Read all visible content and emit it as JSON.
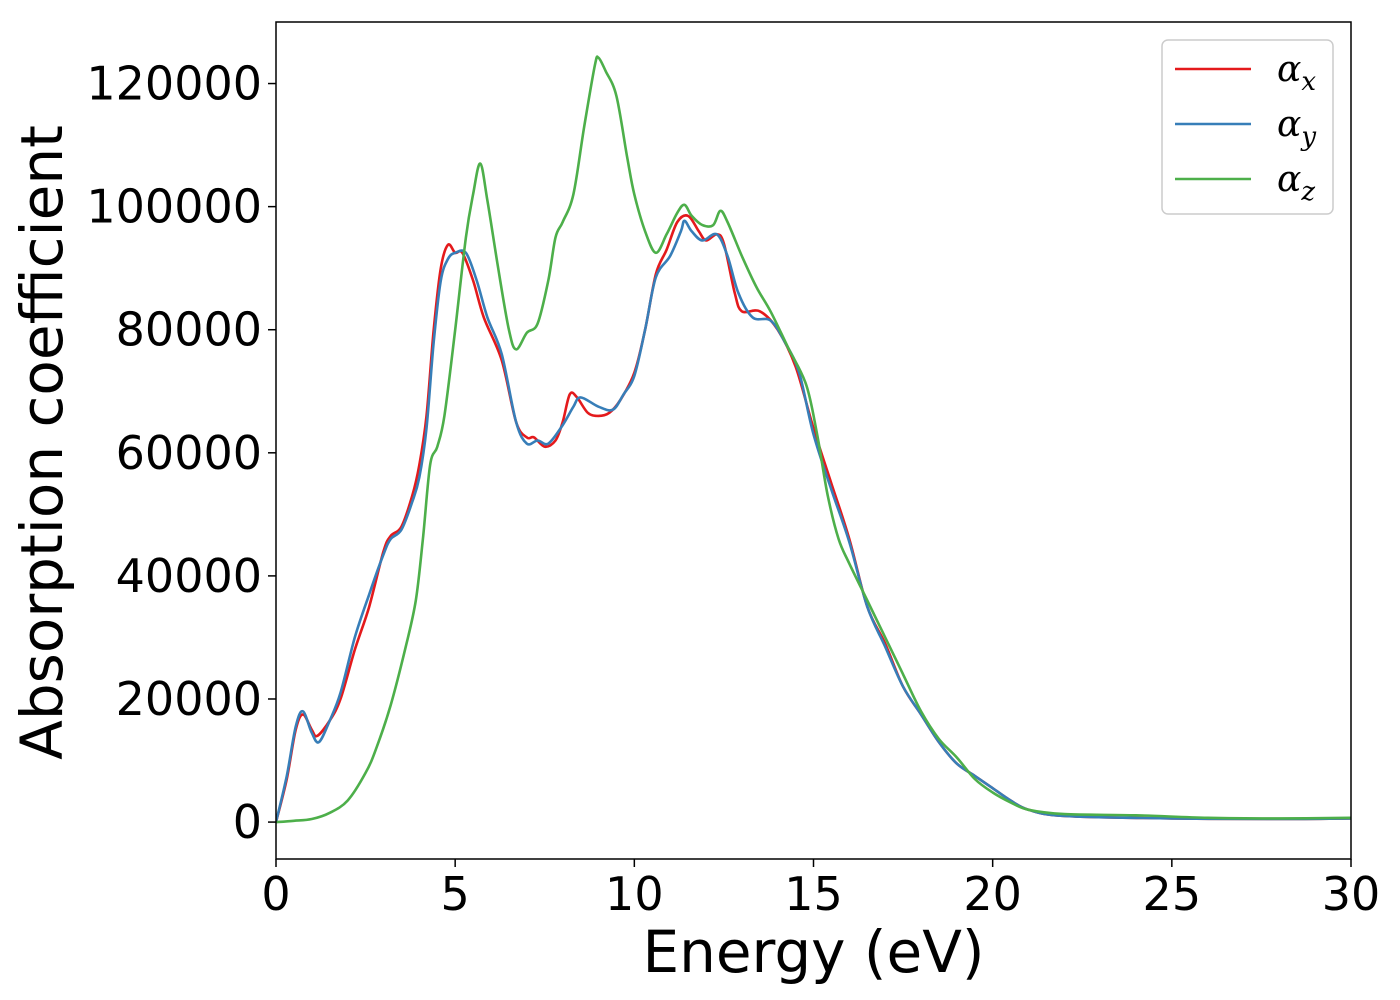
{
  "chart_data": {
    "type": "line",
    "title": "",
    "xlabel": "Energy (eV)",
    "ylabel": "Absorption coefficient",
    "xlim": [
      0,
      30
    ],
    "ylim": [
      -6000,
      130000
    ],
    "x_ticks": [
      "0",
      "5",
      "10",
      "15",
      "20",
      "25",
      "30"
    ],
    "y_ticks": [
      "0",
      "20000",
      "40000",
      "60000",
      "80000",
      "100000",
      "120000"
    ],
    "grid": false,
    "legend_position": "top-right",
    "series": [
      {
        "name": "αx",
        "legend_base": "α",
        "legend_sub": "x",
        "color": "#e41a1c",
        "points": [
          [
            0,
            0
          ],
          [
            0.3,
            7000
          ],
          [
            0.55,
            15000
          ],
          [
            0.75,
            17500
          ],
          [
            1.0,
            15000
          ],
          [
            1.15,
            14000
          ],
          [
            1.5,
            16500
          ],
          [
            1.8,
            20000
          ],
          [
            2.2,
            28000
          ],
          [
            2.6,
            35000
          ],
          [
            3.0,
            44000
          ],
          [
            3.2,
            46500
          ],
          [
            3.5,
            48000
          ],
          [
            3.8,
            53000
          ],
          [
            4.0,
            58000
          ],
          [
            4.2,
            66000
          ],
          [
            4.4,
            80000
          ],
          [
            4.6,
            90000
          ],
          [
            4.8,
            93800
          ],
          [
            5.0,
            92500
          ],
          [
            5.2,
            92500
          ],
          [
            5.5,
            88000
          ],
          [
            5.8,
            82000
          ],
          [
            6.3,
            75000
          ],
          [
            6.7,
            65000
          ],
          [
            7.0,
            62500
          ],
          [
            7.2,
            62500
          ],
          [
            7.5,
            61000
          ],
          [
            7.8,
            62000
          ],
          [
            8.0,
            65000
          ],
          [
            8.2,
            69500
          ],
          [
            8.4,
            69000
          ],
          [
            8.7,
            66500
          ],
          [
            9.0,
            66000
          ],
          [
            9.3,
            66500
          ],
          [
            9.6,
            68500
          ],
          [
            10.0,
            73000
          ],
          [
            10.3,
            80000
          ],
          [
            10.6,
            89000
          ],
          [
            10.9,
            93000
          ],
          [
            11.2,
            97500
          ],
          [
            11.5,
            98500
          ],
          [
            11.8,
            96000
          ],
          [
            12.0,
            94500
          ],
          [
            12.3,
            95500
          ],
          [
            12.5,
            94000
          ],
          [
            12.8,
            86000
          ],
          [
            13.0,
            83000
          ],
          [
            13.5,
            83000
          ],
          [
            14.0,
            80000
          ],
          [
            14.5,
            74000
          ],
          [
            15.0,
            64000
          ],
          [
            15.5,
            55000
          ],
          [
            16.0,
            46000
          ],
          [
            16.5,
            35000
          ],
          [
            17.0,
            29000
          ],
          [
            17.5,
            22000
          ],
          [
            18.0,
            17500
          ],
          [
            18.5,
            13000
          ],
          [
            19.0,
            9500
          ],
          [
            19.5,
            7500
          ],
          [
            20.0,
            5500
          ],
          [
            20.5,
            3500
          ],
          [
            21.0,
            2000
          ],
          [
            22.0,
            1000
          ],
          [
            25.0,
            600
          ],
          [
            28.0,
            500
          ],
          [
            30.0,
            600
          ]
        ]
      },
      {
        "name": "αy",
        "legend_base": "α",
        "legend_sub": "y",
        "color": "#377eb8",
        "points": [
          [
            0,
            0
          ],
          [
            0.3,
            7500
          ],
          [
            0.55,
            15500
          ],
          [
            0.75,
            18000
          ],
          [
            1.0,
            14500
          ],
          [
            1.2,
            13000
          ],
          [
            1.5,
            16500
          ],
          [
            1.8,
            21000
          ],
          [
            2.2,
            30000
          ],
          [
            2.6,
            37000
          ],
          [
            3.0,
            43500
          ],
          [
            3.2,
            46000
          ],
          [
            3.5,
            47500
          ],
          [
            3.8,
            52000
          ],
          [
            4.0,
            56000
          ],
          [
            4.2,
            64000
          ],
          [
            4.4,
            78000
          ],
          [
            4.6,
            88000
          ],
          [
            4.8,
            91500
          ],
          [
            5.0,
            92500
          ],
          [
            5.3,
            92500
          ],
          [
            5.6,
            88000
          ],
          [
            5.9,
            82000
          ],
          [
            6.3,
            76000
          ],
          [
            6.7,
            65000
          ],
          [
            7.0,
            61500
          ],
          [
            7.3,
            62000
          ],
          [
            7.6,
            61500
          ],
          [
            8.0,
            64500
          ],
          [
            8.3,
            67500
          ],
          [
            8.5,
            69000
          ],
          [
            9.0,
            67500
          ],
          [
            9.4,
            67000
          ],
          [
            9.7,
            69500
          ],
          [
            10.0,
            72500
          ],
          [
            10.3,
            80000
          ],
          [
            10.6,
            88500
          ],
          [
            11.0,
            92000
          ],
          [
            11.3,
            96000
          ],
          [
            11.4,
            97700
          ],
          [
            11.6,
            96000
          ],
          [
            11.9,
            94500
          ],
          [
            12.3,
            95500
          ],
          [
            12.6,
            92000
          ],
          [
            12.9,
            86000
          ],
          [
            13.3,
            82000
          ],
          [
            13.8,
            81500
          ],
          [
            14.2,
            78000
          ],
          [
            14.6,
            73000
          ],
          [
            15.0,
            63000
          ],
          [
            15.5,
            54000
          ],
          [
            16.0,
            45500
          ],
          [
            16.5,
            35000
          ],
          [
            17.0,
            28500
          ],
          [
            17.5,
            22000
          ],
          [
            18.0,
            17500
          ],
          [
            18.5,
            13000
          ],
          [
            19.0,
            9500
          ],
          [
            19.5,
            7500
          ],
          [
            20.0,
            5500
          ],
          [
            20.5,
            3500
          ],
          [
            21.0,
            2000
          ],
          [
            22.0,
            1000
          ],
          [
            25.0,
            600
          ],
          [
            28.0,
            500
          ],
          [
            30.0,
            600
          ]
        ]
      },
      {
        "name": "αz",
        "legend_base": "α",
        "legend_sub": "z",
        "color": "#4daf4a",
        "points": [
          [
            0,
            0
          ],
          [
            0.5,
            200
          ],
          [
            1.0,
            500
          ],
          [
            1.5,
            1500
          ],
          [
            2.0,
            3500
          ],
          [
            2.5,
            8000
          ],
          [
            2.8,
            12000
          ],
          [
            3.2,
            19000
          ],
          [
            3.6,
            28000
          ],
          [
            3.9,
            36000
          ],
          [
            4.1,
            46000
          ],
          [
            4.3,
            58000
          ],
          [
            4.5,
            61000
          ],
          [
            4.7,
            66000
          ],
          [
            5.0,
            80000
          ],
          [
            5.3,
            95000
          ],
          [
            5.5,
            102000
          ],
          [
            5.7,
            107000
          ],
          [
            5.9,
            101000
          ],
          [
            6.2,
            90000
          ],
          [
            6.5,
            80000
          ],
          [
            6.7,
            76800
          ],
          [
            7.0,
            79500
          ],
          [
            7.3,
            81000
          ],
          [
            7.6,
            88000
          ],
          [
            7.8,
            95000
          ],
          [
            8.0,
            97500
          ],
          [
            8.3,
            102000
          ],
          [
            8.6,
            113000
          ],
          [
            8.9,
            123000
          ],
          [
            9.0,
            124200
          ],
          [
            9.2,
            122000
          ],
          [
            9.5,
            118000
          ],
          [
            9.8,
            108000
          ],
          [
            10.0,
            102000
          ],
          [
            10.3,
            96000
          ],
          [
            10.6,
            92500
          ],
          [
            10.9,
            95500
          ],
          [
            11.2,
            99000
          ],
          [
            11.4,
            100300
          ],
          [
            11.6,
            98500
          ],
          [
            11.9,
            97000
          ],
          [
            12.2,
            97000
          ],
          [
            12.4,
            99300
          ],
          [
            12.6,
            97500
          ],
          [
            13.0,
            92000
          ],
          [
            13.4,
            87000
          ],
          [
            13.8,
            83000
          ],
          [
            14.3,
            77000
          ],
          [
            14.8,
            71000
          ],
          [
            15.1,
            63000
          ],
          [
            15.4,
            53000
          ],
          [
            15.7,
            46000
          ],
          [
            16.0,
            42000
          ],
          [
            16.5,
            36000
          ],
          [
            17.0,
            30000
          ],
          [
            17.5,
            24000
          ],
          [
            18.0,
            18000
          ],
          [
            18.5,
            13500
          ],
          [
            19.0,
            10500
          ],
          [
            19.5,
            7000
          ],
          [
            20.0,
            4800
          ],
          [
            20.5,
            3200
          ],
          [
            21.0,
            2000
          ],
          [
            22.0,
            1300
          ],
          [
            24.0,
            1100
          ],
          [
            26.0,
            700
          ],
          [
            28.0,
            600
          ],
          [
            30.0,
            700
          ]
        ]
      }
    ]
  }
}
